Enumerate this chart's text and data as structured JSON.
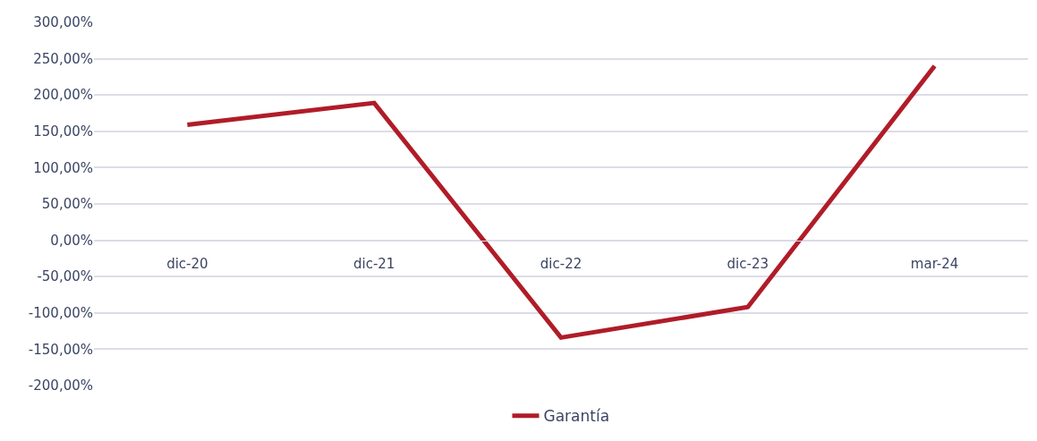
{
  "chart_data": {
    "type": "line",
    "categories": [
      "dic-20",
      "dic-21",
      "dic-22",
      "dic-23",
      "mar-24"
    ],
    "series": [
      {
        "name": "Garantía",
        "color": "#b01c28",
        "values": [
          159,
          189,
          -134,
          -92,
          240
        ]
      }
    ],
    "ylim": [
      -200,
      300
    ],
    "yticks": [
      {
        "value": -200,
        "label": "-200,00%"
      },
      {
        "value": -150,
        "label": "-150,00%"
      },
      {
        "value": -100,
        "label": "-100,00%"
      },
      {
        "value": -50,
        "label": "-50,00%"
      },
      {
        "value": 0,
        "label": "0,00%"
      },
      {
        "value": 50,
        "label": "50,00%"
      },
      {
        "value": 100,
        "label": "100,00%"
      },
      {
        "value": 150,
        "label": "150,00%"
      },
      {
        "value": 200,
        "label": "200,00%"
      },
      {
        "value": 250,
        "label": "250,00%"
      },
      {
        "value": 300,
        "label": "300,00%"
      }
    ],
    "grid": "y",
    "legend": "bottom",
    "marker": "none",
    "line_style": "solid"
  }
}
